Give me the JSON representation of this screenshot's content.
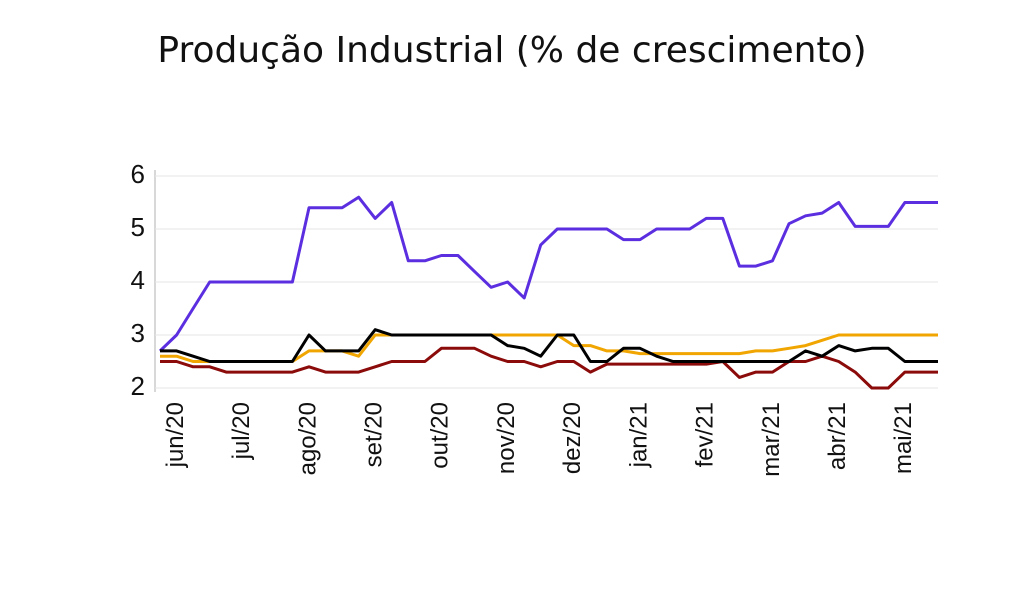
{
  "chart_data": {
    "type": "line",
    "title": "Produção Industrial (% de crescimento)",
    "categories": [
      null,
      "jun/20",
      null,
      null,
      null,
      "jul/20",
      null,
      null,
      null,
      "ago/20",
      null,
      null,
      null,
      "set/20",
      null,
      null,
      null,
      "out/20",
      null,
      null,
      null,
      "nov/20",
      null,
      null,
      null,
      "dez/20",
      null,
      null,
      null,
      "jan/21",
      null,
      null,
      null,
      "fev/21",
      null,
      null,
      null,
      "mar/21",
      null,
      null,
      null,
      "abr/21",
      null,
      null,
      null,
      "mai/21",
      null,
      null
    ],
    "ylim": [
      2,
      6
    ],
    "yticks": [
      2,
      3,
      4,
      5,
      6
    ],
    "grid": true,
    "series": [
      {
        "color": "#5b2ee0",
        "values": [
          2.7,
          3.0,
          3.5,
          4.0,
          4.0,
          4.0,
          4.0,
          4.0,
          4.0,
          5.4,
          5.4,
          5.4,
          5.6,
          5.2,
          5.5,
          4.4,
          4.4,
          4.5,
          4.5,
          4.2,
          3.9,
          4.0,
          3.7,
          4.7,
          5.0,
          5.0,
          5.0,
          5.0,
          4.8,
          4.8,
          5.0,
          5.0,
          5.0,
          5.2,
          5.2,
          4.3,
          4.3,
          4.4,
          5.1,
          5.25,
          5.3,
          5.5,
          5.05,
          5.05,
          5.05,
          5.5,
          5.5,
          5.5
        ]
      },
      {
        "color": "#f0a500",
        "values": [
          2.6,
          2.6,
          2.5,
          2.5,
          2.5,
          2.5,
          2.5,
          2.5,
          2.5,
          2.7,
          2.7,
          2.7,
          2.6,
          3.0,
          3.0,
          3.0,
          3.0,
          3.0,
          3.0,
          3.0,
          3.0,
          3.0,
          3.0,
          3.0,
          3.0,
          2.8,
          2.8,
          2.7,
          2.7,
          2.65,
          2.65,
          2.65,
          2.65,
          2.65,
          2.65,
          2.65,
          2.7,
          2.7,
          2.75,
          2.8,
          2.9,
          3.0,
          3.0,
          3.0,
          3.0,
          3.0,
          3.0,
          3.0
        ]
      },
      {
        "color": "#8b0a0a",
        "values": [
          2.5,
          2.5,
          2.4,
          2.4,
          2.3,
          2.3,
          2.3,
          2.3,
          2.3,
          2.4,
          2.3,
          2.3,
          2.3,
          2.4,
          2.5,
          2.5,
          2.5,
          2.75,
          2.75,
          2.75,
          2.6,
          2.5,
          2.5,
          2.4,
          2.5,
          2.5,
          2.3,
          2.45,
          2.45,
          2.45,
          2.45,
          2.45,
          2.45,
          2.45,
          2.5,
          2.2,
          2.3,
          2.3,
          2.5,
          2.5,
          2.6,
          2.5,
          2.3,
          2.0,
          2.0,
          2.3,
          2.3,
          2.3
        ]
      },
      {
        "color": "#000000",
        "values": [
          2.7,
          2.7,
          2.6,
          2.5,
          2.5,
          2.5,
          2.5,
          2.5,
          2.5,
          3.0,
          2.7,
          2.7,
          2.7,
          3.1,
          3.0,
          3.0,
          3.0,
          3.0,
          3.0,
          3.0,
          3.0,
          2.8,
          2.75,
          2.6,
          3.0,
          3.0,
          2.5,
          2.5,
          2.75,
          2.75,
          2.6,
          2.5,
          2.5,
          2.5,
          2.5,
          2.5,
          2.5,
          2.5,
          2.5,
          2.7,
          2.6,
          2.8,
          2.7,
          2.75,
          2.75,
          2.5,
          2.5,
          2.5
        ]
      }
    ]
  }
}
